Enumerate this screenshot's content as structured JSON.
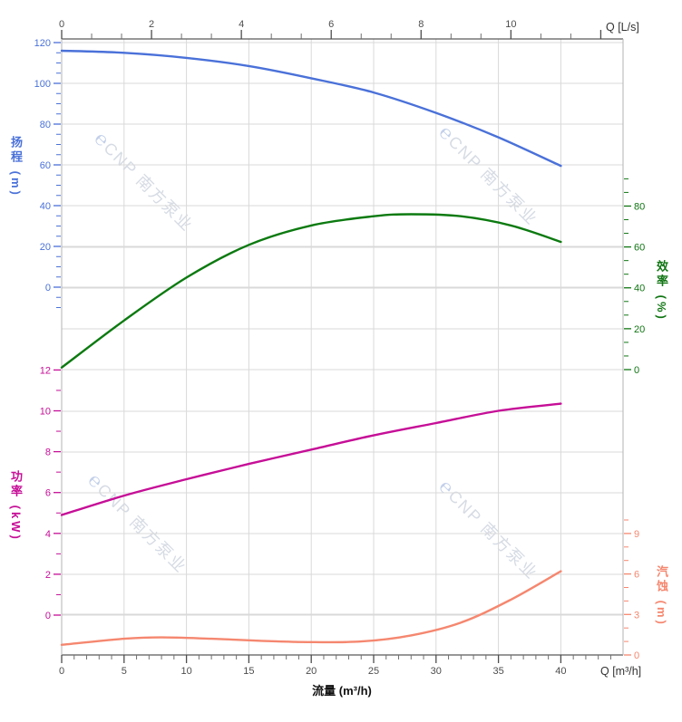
{
  "chart_data": {
    "type": "line",
    "title": "",
    "x_axis_bottom": {
      "title": "流量 (m³/h)",
      "unit_label": "Q [m³/h]",
      "unit": "m³/h",
      "range": [
        0,
        45
      ],
      "major_ticks": [
        0,
        5,
        10,
        15,
        20,
        25,
        30,
        35,
        40
      ],
      "minor_ticks": [
        1,
        2,
        3,
        4,
        6,
        7,
        8,
        9,
        11,
        12,
        13,
        14,
        16,
        17,
        18,
        19,
        21,
        22,
        23,
        24,
        26,
        27,
        28,
        29,
        31,
        32,
        33,
        34,
        36,
        37,
        38,
        39,
        41,
        42,
        43,
        44
      ],
      "tick_color": "#4d4d4d"
    },
    "x_axis_top": {
      "unit_label": "Q [L/s]",
      "unit": "L/s",
      "range": [
        0,
        12.5
      ],
      "major_ticks": [
        0,
        2,
        4,
        6,
        8,
        10,
        12
      ],
      "labeled_ticks": [
        0,
        2,
        4,
        6,
        8,
        10
      ],
      "minor_ticks": [
        0.667,
        1.333,
        2.667,
        3.333,
        4.667,
        5.333,
        6.667,
        7.333,
        8.667,
        9.333,
        10.667,
        11.333
      ],
      "tick_color": "#4d4d4d"
    },
    "axes": {
      "head": {
        "title": "扬程 (m)",
        "side": "left",
        "color": "#4a71d9",
        "major_ticks": [
          120,
          100,
          80,
          60,
          40,
          20,
          0
        ],
        "minor_ticks": [
          115,
          110,
          105,
          95,
          90,
          85,
          75,
          70,
          65,
          55,
          50,
          45,
          35,
          30,
          25,
          15,
          10,
          5,
          -5,
          -10
        ]
      },
      "eff": {
        "title": "效率 (%)",
        "side": "right",
        "color": "#107513",
        "major_ticks": [
          80,
          60,
          40,
          20,
          0
        ],
        "minor_ticks": [
          6.67,
          13.33,
          26.67,
          33.33,
          46.67,
          53.33,
          66.67,
          73.33,
          86.67,
          93.33
        ]
      },
      "power": {
        "title": "功率 (kW)",
        "side": "left",
        "color": "#c60e97",
        "major_ticks": [
          12,
          10,
          8,
          6,
          4,
          2,
          0
        ],
        "minor_ticks": [
          1,
          3,
          5,
          7,
          9,
          11
        ]
      },
      "npsh": {
        "title": "汽蚀 (m)",
        "side": "right",
        "color": "#f5876f",
        "major_ticks": [
          9,
          6,
          3,
          0
        ],
        "minor_ticks": [
          1,
          2,
          4,
          5,
          7,
          8,
          10
        ]
      }
    },
    "series": [
      {
        "id": "head",
        "name": "扬程",
        "axis": "head",
        "color": "#4a71d9",
        "points": [
          [
            0,
            116
          ],
          [
            5,
            115
          ],
          [
            10,
            112.5
          ],
          [
            15,
            108.5
          ],
          [
            20,
            102.5
          ],
          [
            25,
            95.5
          ],
          [
            30,
            85.5
          ],
          [
            35,
            73.5
          ],
          [
            40,
            59.5
          ]
        ]
      },
      {
        "id": "efficiency",
        "name": "效率",
        "axis": "eff",
        "color": "#0c7a10",
        "points": [
          [
            0,
            1
          ],
          [
            5,
            24
          ],
          [
            10,
            45
          ],
          [
            15,
            61
          ],
          [
            20,
            70.5
          ],
          [
            25,
            75
          ],
          [
            28,
            76
          ],
          [
            32,
            75
          ],
          [
            36,
            70.5
          ],
          [
            40,
            62.5
          ]
        ]
      },
      {
        "id": "power",
        "name": "功率",
        "axis": "power",
        "color": "#c60e97",
        "points": [
          [
            0,
            4.9
          ],
          [
            5,
            5.85
          ],
          [
            10,
            6.65
          ],
          [
            15,
            7.4
          ],
          [
            20,
            8.1
          ],
          [
            25,
            8.8
          ],
          [
            30,
            9.4
          ],
          [
            35,
            10.0
          ],
          [
            40,
            10.35
          ]
        ]
      },
      {
        "id": "npsh",
        "name": "汽蚀",
        "axis": "npsh",
        "color": "#f5876f",
        "points": [
          [
            0,
            0.75
          ],
          [
            5,
            1.2
          ],
          [
            8,
            1.3
          ],
          [
            12,
            1.2
          ],
          [
            16,
            1.05
          ],
          [
            20,
            0.95
          ],
          [
            24,
            1.0
          ],
          [
            28,
            1.45
          ],
          [
            32,
            2.4
          ],
          [
            36,
            4.1
          ],
          [
            40,
            6.2
          ]
        ]
      }
    ],
    "grid": {
      "color": "#d9d9d9",
      "border_dark": "#5a5a5a",
      "border_light": "#b3b3b3"
    },
    "legend": {
      "visible": false
    }
  },
  "watermark": {
    "logo_glyph": "℮",
    "text": "CNP 南方泵业"
  }
}
